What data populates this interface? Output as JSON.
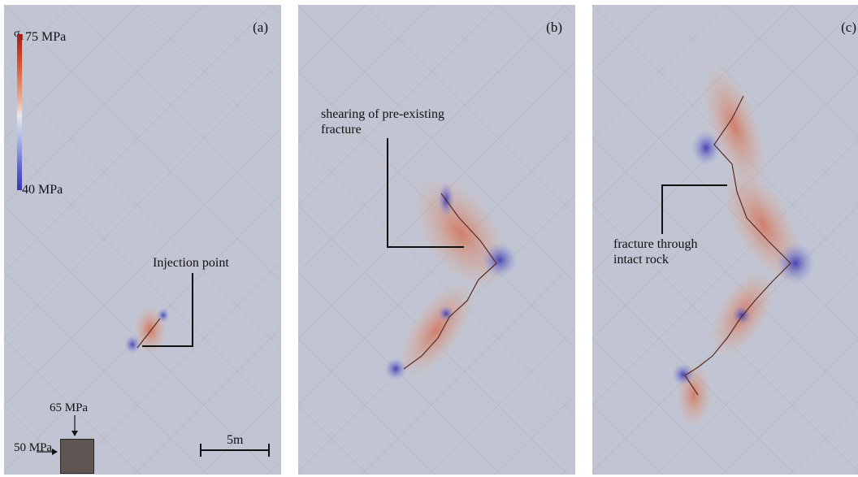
{
  "panels": [
    {
      "label": "(a)"
    },
    {
      "label": "(b)"
    },
    {
      "label": "(c)"
    }
  ],
  "legend": {
    "title": "σ",
    "title_sub": "1",
    "max_label": "75 MPa",
    "min_label": "40 MPa"
  },
  "annotations": {
    "injection_point": "Injection point",
    "shearing_line1": "shearing of pre-existing",
    "shearing_line2": "fracture",
    "intact_line1": "fracture through",
    "intact_line2": "intact rock"
  },
  "scale_bar": {
    "label": "5m"
  },
  "boundary_loads": {
    "vertical": "65 MPa",
    "horizontal": "50 MPa"
  },
  "colors": {
    "background_stress": "#c1c5d3",
    "high_stress": "#a01c12",
    "low_stress": "#3a36b0"
  }
}
